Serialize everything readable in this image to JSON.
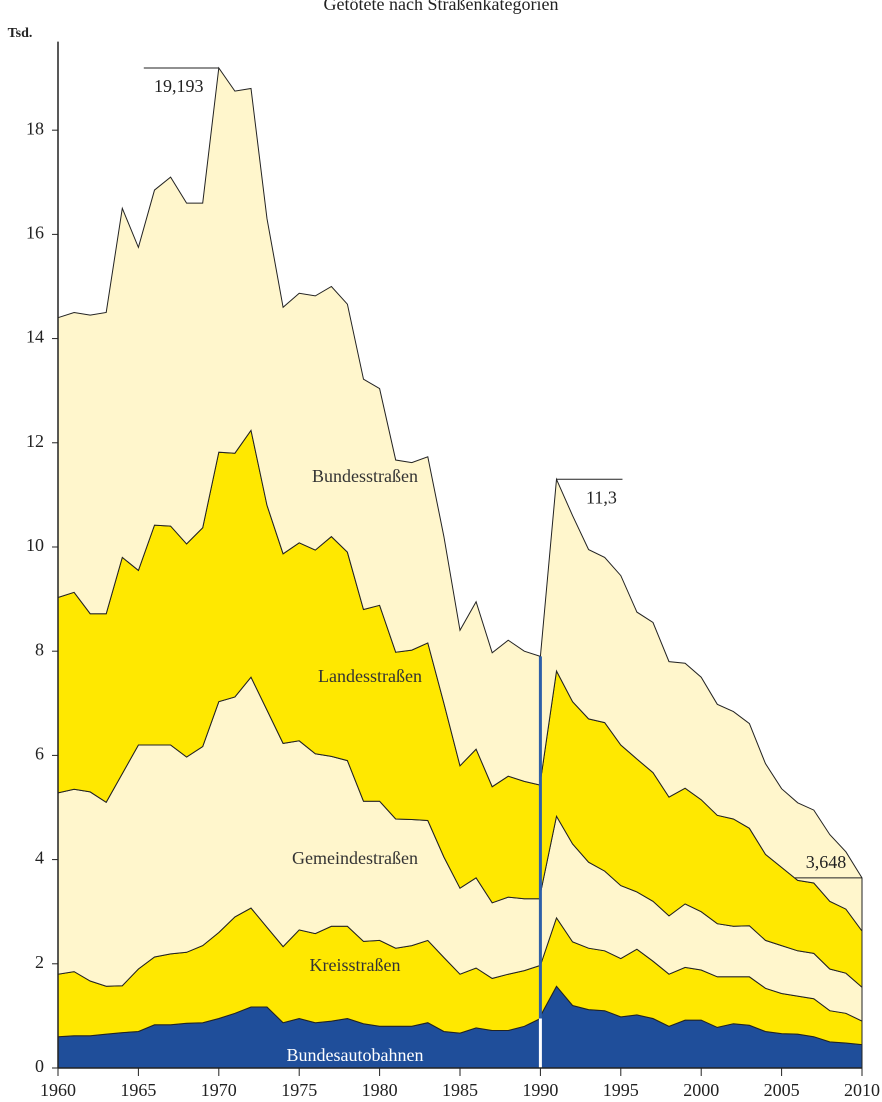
{
  "chart_data": {
    "type": "stacked_area",
    "title": "Getötete nach Straßenkategorien",
    "y_label": "Tsd.",
    "x": [
      1960,
      1961,
      1962,
      1963,
      1964,
      1965,
      1966,
      1967,
      1968,
      1969,
      1970,
      1971,
      1972,
      1973,
      1974,
      1975,
      1976,
      1977,
      1978,
      1979,
      1980,
      1981,
      1982,
      1983,
      1984,
      1985,
      1986,
      1987,
      1988,
      1989,
      1990,
      null,
      1990,
      1991,
      1992,
      1993,
      1994,
      1995,
      1996,
      1997,
      1998,
      1999,
      2000,
      2001,
      2002,
      2003,
      2004,
      2005,
      2006,
      2007,
      2008,
      2009,
      2010
    ],
    "series": [
      {
        "name": "Bundesautobahnen",
        "color": "#1f4e9a",
        "values": [
          0.6,
          0.62,
          0.62,
          0.65,
          0.68,
          0.7,
          0.83,
          0.83,
          0.86,
          0.87,
          0.95,
          1.05,
          1.17,
          1.17,
          0.87,
          0.95,
          0.87,
          0.9,
          0.95,
          0.85,
          0.8,
          0.8,
          0.8,
          0.87,
          0.7,
          0.67,
          0.77,
          0.72,
          0.72,
          0.8,
          0.95,
          null,
          1.0,
          1.57,
          1.2,
          1.12,
          1.1,
          0.98,
          1.02,
          0.95,
          0.8,
          0.92,
          0.92,
          0.78,
          0.85,
          0.82,
          0.7,
          0.66,
          0.65,
          0.6,
          0.5,
          0.48,
          0.45
        ]
      },
      {
        "name": "Kreisstraßen",
        "color": "#ffe800",
        "values": [
          1.2,
          1.23,
          1.05,
          0.92,
          0.9,
          1.2,
          1.3,
          1.36,
          1.36,
          1.48,
          1.65,
          1.85,
          1.9,
          1.53,
          1.46,
          1.7,
          1.71,
          1.82,
          1.77,
          1.58,
          1.65,
          1.5,
          1.55,
          1.58,
          1.42,
          1.13,
          1.15,
          1.0,
          1.08,
          1.07,
          1.02,
          null,
          0.97,
          1.31,
          1.22,
          1.18,
          1.15,
          1.12,
          1.26,
          1.1,
          1.0,
          1.01,
          0.96,
          0.97,
          0.9,
          0.93,
          0.83,
          0.77,
          0.73,
          0.73,
          0.6,
          0.57,
          0.45
        ]
      },
      {
        "name": "Gemeindestraßen",
        "color": "#fff6cc",
        "values": [
          3.48,
          3.5,
          3.63,
          3.53,
          4.07,
          4.3,
          4.07,
          4.01,
          3.75,
          3.82,
          4.43,
          4.22,
          4.43,
          4.17,
          3.9,
          3.63,
          3.45,
          3.26,
          3.18,
          2.69,
          2.67,
          2.48,
          2.42,
          2.3,
          1.93,
          1.65,
          1.73,
          1.45,
          1.48,
          1.38,
          1.28,
          null,
          1.38,
          1.95,
          1.88,
          1.65,
          1.53,
          1.4,
          1.1,
          1.15,
          1.12,
          1.22,
          1.12,
          1.02,
          0.97,
          0.98,
          0.92,
          0.92,
          0.87,
          0.87,
          0.8,
          0.77,
          0.65
        ]
      },
      {
        "name": "Landesstraßen",
        "color": "#ffe800",
        "values": [
          3.75,
          3.78,
          3.42,
          3.62,
          4.15,
          3.35,
          4.22,
          4.2,
          4.09,
          4.2,
          4.79,
          4.68,
          4.74,
          3.93,
          3.64,
          3.8,
          3.91,
          4.22,
          4.0,
          3.68,
          3.76,
          3.2,
          3.25,
          3.41,
          2.95,
          2.35,
          2.47,
          2.23,
          2.32,
          2.25,
          2.18,
          null,
          2.15,
          2.79,
          2.73,
          2.75,
          2.85,
          2.7,
          2.55,
          2.47,
          2.28,
          2.22,
          2.15,
          2.08,
          2.06,
          1.87,
          1.65,
          1.5,
          1.35,
          1.35,
          1.3,
          1.23,
          1.08
        ]
      },
      {
        "name": "Bundesstraßen",
        "color": "#fff6cc",
        "values": [
          5.37,
          5.37,
          5.73,
          5.78,
          6.7,
          6.2,
          6.43,
          6.7,
          6.54,
          6.23,
          7.373,
          6.95,
          6.56,
          5.5,
          4.73,
          4.79,
          4.88,
          4.8,
          4.76,
          4.42,
          4.16,
          3.69,
          3.6,
          3.57,
          3.2,
          2.6,
          2.83,
          2.57,
          2.61,
          2.5,
          2.47,
          null,
          2.4,
          3.68,
          3.57,
          3.25,
          3.17,
          3.25,
          2.82,
          2.88,
          2.6,
          2.4,
          2.35,
          2.13,
          2.06,
          2.01,
          1.74,
          1.51,
          1.49,
          1.4,
          1.28,
          1.1,
          1.018
        ]
      }
    ],
    "annotations": [
      {
        "text": "19,193",
        "x": 1970
      },
      {
        "text": "11,3",
        "x": 1991
      },
      {
        "text": "3,648",
        "x": 2010
      }
    ],
    "xlim": [
      1960,
      2010
    ],
    "xticks": [
      1960,
      1965,
      1970,
      1975,
      1980,
      1985,
      1990,
      1995,
      2000,
      2005,
      2010
    ],
    "ylim": [
      0,
      19.7
    ],
    "yticks": [
      0,
      2,
      4,
      6,
      8,
      10,
      12,
      14,
      16,
      18
    ]
  }
}
